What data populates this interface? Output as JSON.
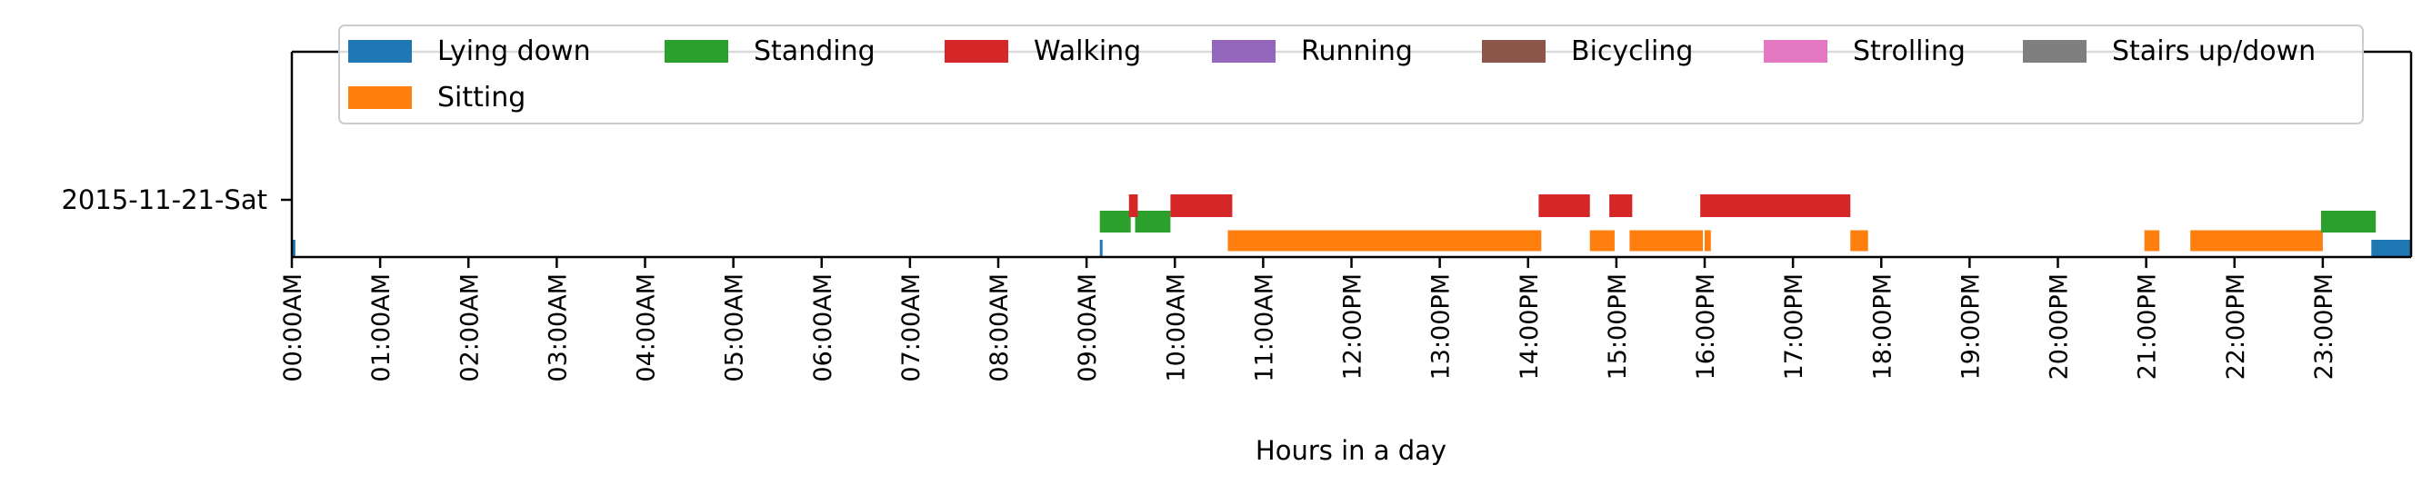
{
  "chart_data": {
    "type": "timeline",
    "xlabel": "Hours in a day",
    "ylabel": "",
    "xlim_hours": [
      0,
      24
    ],
    "grid": false,
    "legend_placement": "top-center",
    "row_label": "2015-11-21-Sat",
    "x_ticks": [
      "00:00AM",
      "01:00AM",
      "02:00AM",
      "03:00AM",
      "04:00AM",
      "05:00AM",
      "06:00AM",
      "07:00AM",
      "08:00AM",
      "09:00AM",
      "10:00AM",
      "11:00AM",
      "12:00PM",
      "13:00PM",
      "14:00PM",
      "15:00PM",
      "16:00PM",
      "17:00PM",
      "18:00PM",
      "19:00PM",
      "20:00PM",
      "21:00PM",
      "22:00PM",
      "23:00PM"
    ],
    "legend": [
      {
        "name": "Lying down",
        "color": "#1f77b4"
      },
      {
        "name": "Standing",
        "color": "#2ca02c"
      },
      {
        "name": "Walking",
        "color": "#d62728"
      },
      {
        "name": "Running",
        "color": "#9467bd"
      },
      {
        "name": "Bicycling",
        "color": "#8c564b"
      },
      {
        "name": "Strolling",
        "color": "#e377c2"
      },
      {
        "name": "Stairs up/down",
        "color": "#7f7f7f"
      },
      {
        "name": "Sitting",
        "color": "#ff7f0e"
      }
    ],
    "series": [
      {
        "name": "Lying down",
        "lane": 0,
        "intervals": [
          [
            0.0,
            0.04
          ],
          [
            9.15,
            9.18
          ],
          [
            23.55,
            24.0
          ]
        ]
      },
      {
        "name": "Sitting",
        "lane": 1,
        "intervals": [
          [
            10.6,
            14.15
          ],
          [
            14.7,
            14.98
          ],
          [
            15.15,
            15.98
          ],
          [
            16.0,
            16.07
          ],
          [
            17.65,
            17.85
          ],
          [
            20.98,
            21.15
          ],
          [
            21.5,
            23.0
          ]
        ]
      },
      {
        "name": "Standing",
        "lane": 2,
        "intervals": [
          [
            9.15,
            9.5
          ],
          [
            9.55,
            9.95
          ],
          [
            22.98,
            23.6
          ]
        ]
      },
      {
        "name": "Walking",
        "lane": 3,
        "intervals": [
          [
            9.48,
            9.58
          ],
          [
            9.95,
            10.65
          ],
          [
            14.12,
            14.7
          ],
          [
            14.92,
            15.18
          ],
          [
            15.95,
            17.65
          ]
        ]
      }
    ]
  }
}
